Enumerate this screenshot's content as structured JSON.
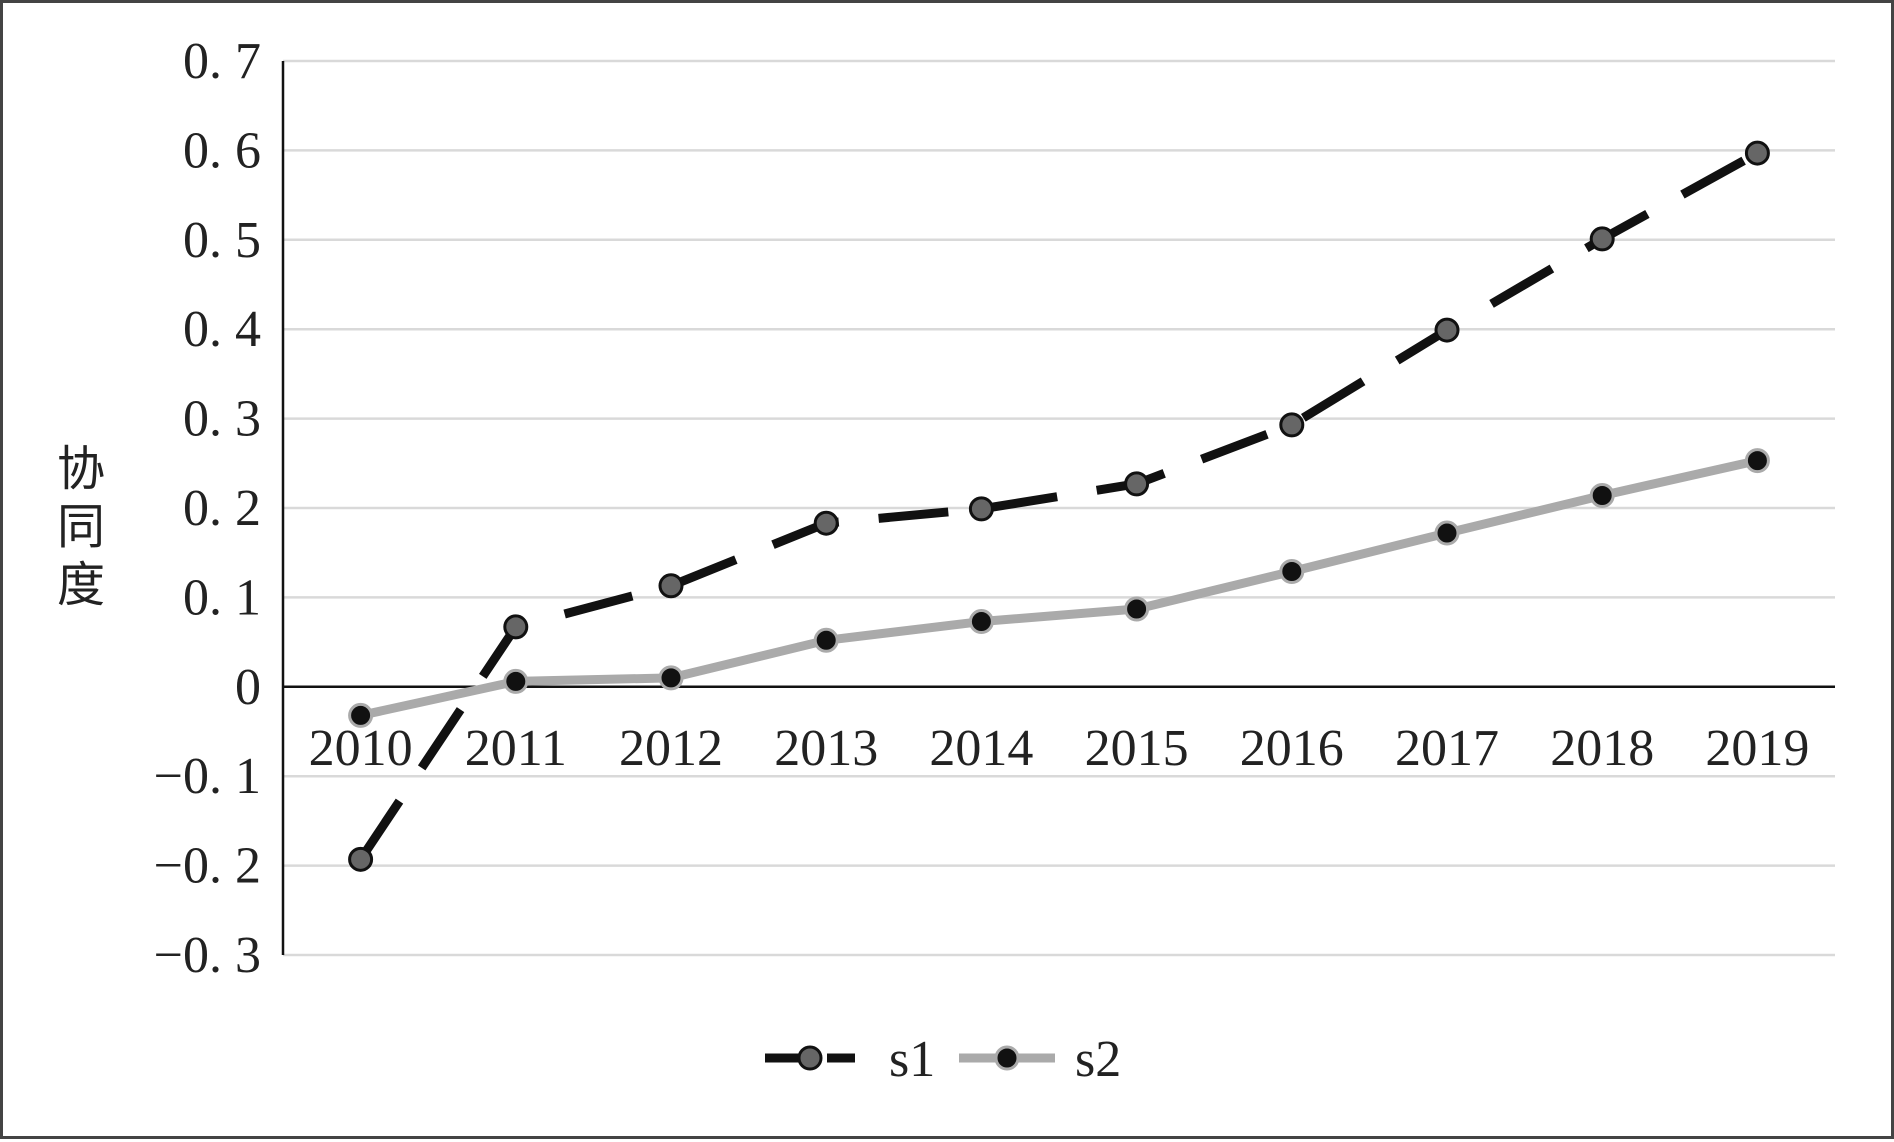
{
  "chart_data": {
    "type": "line",
    "title": "",
    "xlabel": "",
    "ylabel": "协同度",
    "categories": [
      "2010",
      "2011",
      "2012",
      "2013",
      "2014",
      "2015",
      "2016",
      "2017",
      "2018",
      "2019"
    ],
    "series": [
      {
        "name": "s1",
        "values": [
          -0.193,
          0.067,
          0.113,
          0.183,
          0.199,
          0.227,
          0.293,
          0.399,
          0.501,
          0.597
        ],
        "line_color": "#111111",
        "line_style": "dashed",
        "marker_color": "#666666"
      },
      {
        "name": "s2",
        "values": [
          -0.032,
          0.006,
          0.01,
          0.052,
          0.073,
          0.087,
          0.129,
          0.172,
          0.214,
          0.253
        ],
        "line_color": "#aaaaaa",
        "line_style": "solid",
        "marker_color": "#111111"
      }
    ],
    "ylim": [
      -0.3,
      0.7
    ],
    "yticks": [
      "0. 7",
      "0. 6",
      "0. 5",
      "0. 4",
      "0. 3",
      "0. 2",
      "0. 1",
      "0",
      "−0. 1",
      "−0. 2",
      "−0. 3"
    ],
    "grid": true,
    "legend_position": "bottom"
  }
}
